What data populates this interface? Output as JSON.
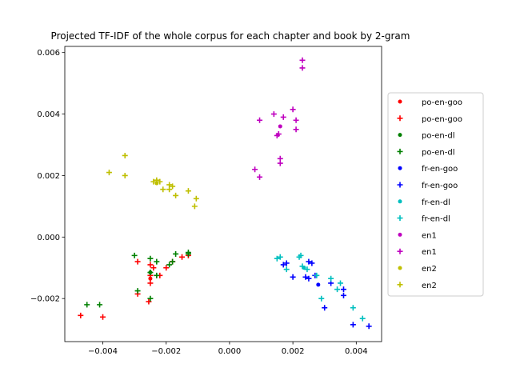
{
  "chart_data": {
    "type": "scatter",
    "title": "Projected TF-IDF of the whole corpus for each chapter and book by 2-gram",
    "xlabel": "",
    "ylabel": "",
    "xlim": [
      -0.0052,
      0.0048
    ],
    "ylim": [
      -0.0034,
      0.0062
    ],
    "x_ticks": [
      {
        "value": -0.004,
        "label": "−0.004"
      },
      {
        "value": -0.002,
        "label": "−0.002"
      },
      {
        "value": 0.0,
        "label": "0.000"
      },
      {
        "value": 0.002,
        "label": "0.002"
      },
      {
        "value": 0.004,
        "label": "0.004"
      }
    ],
    "y_ticks": [
      {
        "value": -0.002,
        "label": "−0.002"
      },
      {
        "value": 0.0,
        "label": "0.000"
      },
      {
        "value": 0.002,
        "label": "0.002"
      },
      {
        "value": 0.004,
        "label": "0.004"
      },
      {
        "value": 0.006,
        "label": "0.006"
      }
    ],
    "grid": false,
    "legend_position": "center-right",
    "series": [
      {
        "name": "po-en-goo",
        "marker": "dot",
        "color": "#ff0000",
        "points": [
          [
            -0.0025,
            -0.00135
          ]
        ]
      },
      {
        "name": "po-en-goo",
        "marker": "plus",
        "color": "#ff0000",
        "points": [
          [
            -0.0047,
            -0.00255
          ],
          [
            -0.004,
            -0.0026
          ],
          [
            -0.0029,
            -0.00185
          ],
          [
            -0.00255,
            -0.0021
          ],
          [
            -0.0025,
            -0.0015
          ],
          [
            -0.0025,
            -0.00125
          ],
          [
            -0.0022,
            -0.00125
          ],
          [
            -0.002,
            -0.001
          ],
          [
            -0.0018,
            -0.0008
          ],
          [
            -0.0029,
            -0.0008
          ],
          [
            -0.0025,
            -0.0009
          ],
          [
            -0.0015,
            -0.00065
          ],
          [
            -0.0013,
            -0.0006
          ],
          [
            -0.0024,
            -0.001
          ]
        ]
      },
      {
        "name": "po-en-dl",
        "marker": "dot",
        "color": "#008000",
        "points": [
          [
            -0.0025,
            -0.00115
          ]
        ]
      },
      {
        "name": "po-en-dl",
        "marker": "plus",
        "color": "#008000",
        "points": [
          [
            -0.0045,
            -0.0022
          ],
          [
            -0.0041,
            -0.0022
          ],
          [
            -0.0029,
            -0.00175
          ],
          [
            -0.0025,
            -0.002
          ],
          [
            -0.0025,
            -0.00115
          ],
          [
            -0.0023,
            -0.00125
          ],
          [
            -0.0019,
            -0.0009
          ],
          [
            -0.0018,
            -0.0008
          ],
          [
            -0.0017,
            -0.00055
          ],
          [
            -0.0013,
            -0.0005
          ],
          [
            -0.003,
            -0.0006
          ],
          [
            -0.0025,
            -0.0007
          ],
          [
            -0.0023,
            -0.0008
          ],
          [
            -0.0013,
            -0.00055
          ]
        ]
      },
      {
        "name": "fr-en-goo",
        "marker": "dot",
        "color": "#0000ff",
        "points": [
          [
            0.0028,
            -0.00155
          ]
        ]
      },
      {
        "name": "fr-en-goo",
        "marker": "plus",
        "color": "#0000ff",
        "points": [
          [
            0.0017,
            -0.0009
          ],
          [
            0.0018,
            -0.00085
          ],
          [
            0.002,
            -0.0013
          ],
          [
            0.0024,
            -0.0013
          ],
          [
            0.0025,
            -0.0008
          ],
          [
            0.0025,
            -0.00135
          ],
          [
            0.0026,
            -0.00085
          ],
          [
            0.0027,
            -0.00125
          ],
          [
            0.003,
            -0.0023
          ],
          [
            0.0032,
            -0.0015
          ],
          [
            0.0036,
            -0.0017
          ],
          [
            0.0036,
            -0.0019
          ],
          [
            0.0039,
            -0.00285
          ],
          [
            0.0044,
            -0.0029
          ]
        ]
      },
      {
        "name": "fr-en-dl",
        "marker": "dot",
        "color": "#00bfbf",
        "points": [
          [
            0.00235,
            -0.001
          ]
        ]
      },
      {
        "name": "fr-en-dl",
        "marker": "plus",
        "color": "#00bfbf",
        "points": [
          [
            0.0015,
            -0.0007
          ],
          [
            0.0016,
            -0.00065
          ],
          [
            0.0018,
            -0.00105
          ],
          [
            0.0022,
            -0.00065
          ],
          [
            0.00225,
            -0.0006
          ],
          [
            0.0023,
            -0.00095
          ],
          [
            0.00245,
            -0.00105
          ],
          [
            0.00275,
            -0.00125
          ],
          [
            0.0029,
            -0.002
          ],
          [
            0.0032,
            -0.00135
          ],
          [
            0.0034,
            -0.0017
          ],
          [
            0.0035,
            -0.0015
          ],
          [
            0.0039,
            -0.0023
          ],
          [
            0.0042,
            -0.00265
          ]
        ]
      },
      {
        "name": "en1",
        "marker": "dot",
        "color": "#bf00bf",
        "points": [
          [
            0.0016,
            0.0036
          ]
        ]
      },
      {
        "name": "en1",
        "marker": "plus",
        "color": "#bf00bf",
        "points": [
          [
            0.0008,
            0.0022
          ],
          [
            0.00095,
            0.00195
          ],
          [
            0.00095,
            0.0038
          ],
          [
            0.0014,
            0.004
          ],
          [
            0.0015,
            0.0033
          ],
          [
            0.00155,
            0.00335
          ],
          [
            0.0016,
            0.00255
          ],
          [
            0.0016,
            0.0024
          ],
          [
            0.0017,
            0.0039
          ],
          [
            0.002,
            0.00415
          ],
          [
            0.0021,
            0.0035
          ],
          [
            0.0021,
            0.0038
          ],
          [
            0.0023,
            0.0055
          ],
          [
            0.0023,
            0.00575
          ]
        ]
      },
      {
        "name": "en2",
        "marker": "dot",
        "color": "#bfbf00",
        "points": [
          [
            -0.0023,
            0.00175
          ]
        ]
      },
      {
        "name": "en2",
        "marker": "plus",
        "color": "#bfbf00",
        "points": [
          [
            -0.0038,
            0.0021
          ],
          [
            -0.0033,
            0.002
          ],
          [
            -0.0033,
            0.00265
          ],
          [
            -0.0023,
            0.00185
          ],
          [
            -0.0022,
            0.0018
          ],
          [
            -0.0021,
            0.00155
          ],
          [
            -0.0019,
            0.0017
          ],
          [
            -0.0018,
            0.00165
          ],
          [
            -0.0017,
            0.00135
          ],
          [
            -0.0013,
            0.0015
          ],
          [
            -0.0011,
            0.001
          ],
          [
            -0.00105,
            0.00125
          ],
          [
            -0.0019,
            0.00155
          ],
          [
            -0.0024,
            0.0018
          ]
        ]
      }
    ]
  }
}
